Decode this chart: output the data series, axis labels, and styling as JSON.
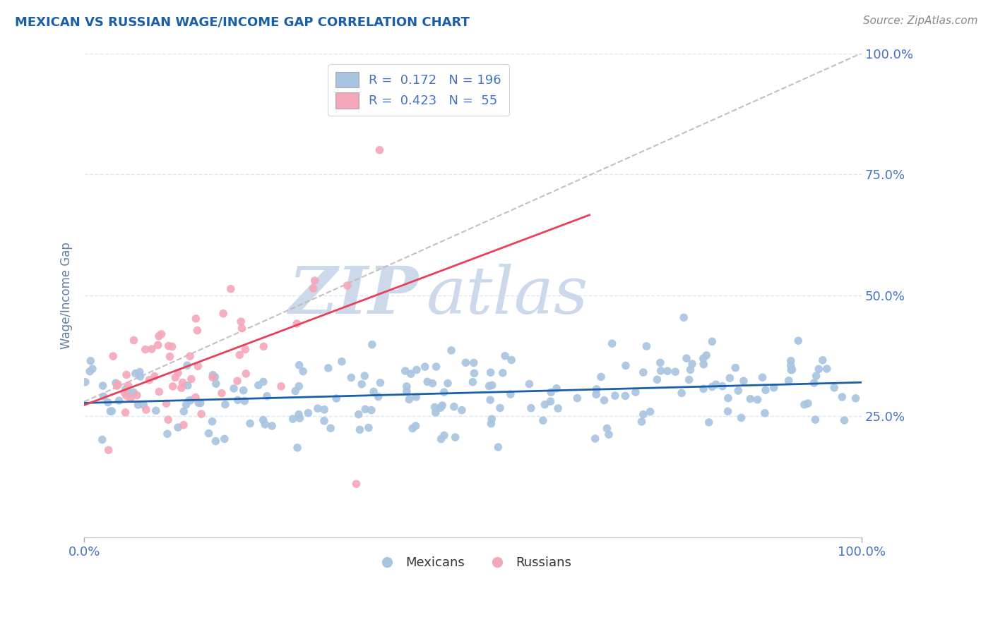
{
  "title": "MEXICAN VS RUSSIAN WAGE/INCOME GAP CORRELATION CHART",
  "source": "Source: ZipAtlas.com",
  "ylabel": "Wage/Income Gap",
  "mexican_color": "#a8c4e0",
  "russian_color": "#f4a7b9",
  "mexican_line_color": "#1a5fa8",
  "russian_line_color": "#e8405a",
  "overall_line_color": "#c0b8b8",
  "background_color": "#ffffff",
  "grid_color": "#dde5f0",
  "title_color": "#1a5fa8",
  "tick_color": "#4472c4",
  "watermark_color": "#ccd9ea",
  "R_mexican": 0.172,
  "N_mexican": 196,
  "R_russian": 0.423,
  "N_russian": 55
}
